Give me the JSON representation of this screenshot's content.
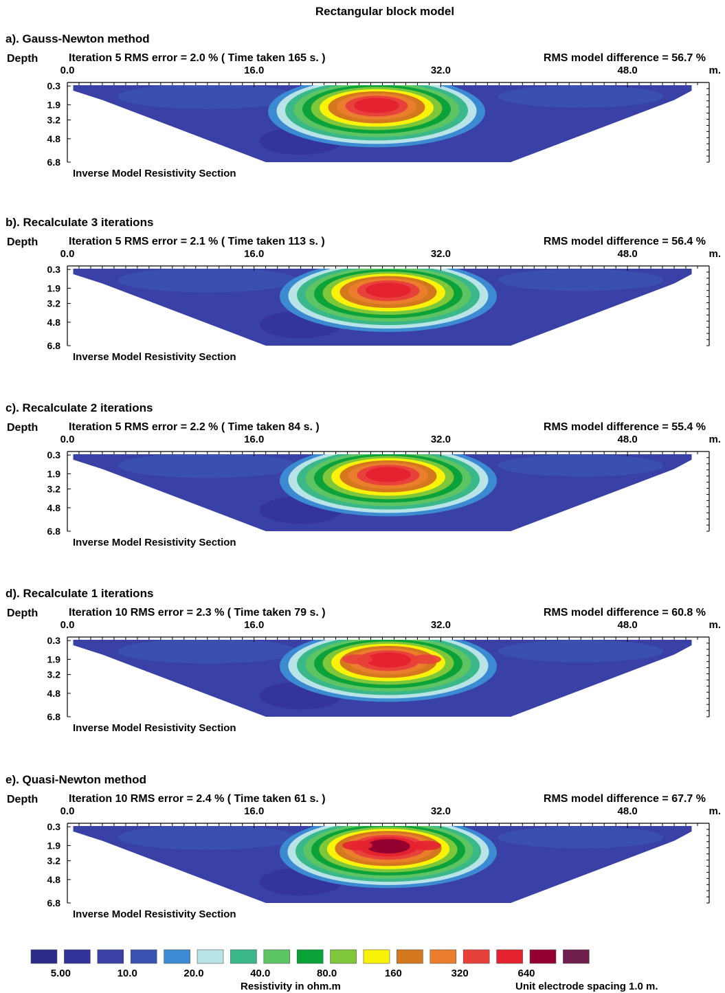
{
  "figure_title": "Rectangular block model",
  "depth_label": "Depth",
  "unit_label": "m.",
  "section_caption": "Inverse Model Resistivity Section",
  "chart_data": [
    {
      "type": "heatmap",
      "panel": "a). Gauss-Newton method",
      "iteration_text": "Iteration 5 RMS error = 2.0 % ( Time taken 165 s. )",
      "iterations": 5,
      "rms_error_percent": 2.0,
      "time_taken_s": 165,
      "rms_model_difference_text": "RMS model difference = 56.7 %",
      "rms_model_difference_percent": 56.7,
      "x_ticks": [
        "0.0",
        "16.0",
        "32.0",
        "48.0"
      ],
      "depth_ticks": [
        "0.3",
        "1.9",
        "3.2",
        "4.8",
        "6.8"
      ],
      "xlim": [
        0,
        55
      ],
      "ylim": [
        0,
        6.8
      ],
      "anomaly": {
        "center_x": 26.5,
        "peak_depth": 1.9,
        "max_level": 13,
        "shape": "single"
      }
    },
    {
      "type": "heatmap",
      "panel": "b). Recalculate 3 iterations",
      "iteration_text": "Iteration 5 RMS error = 2.1 % ( Time taken 113 s. )",
      "iterations": 5,
      "rms_error_percent": 2.1,
      "time_taken_s": 113,
      "rms_model_difference_text": "RMS model difference = 56.4 %",
      "rms_model_difference_percent": 56.4,
      "x_ticks": [
        "0.0",
        "16.0",
        "32.0",
        "48.0"
      ],
      "depth_ticks": [
        "0.3",
        "1.9",
        "3.2",
        "4.8",
        "6.8"
      ],
      "xlim": [
        0,
        55
      ],
      "ylim": [
        0,
        6.8
      ],
      "anomaly": {
        "center_x": 27.5,
        "peak_depth": 2.0,
        "max_level": 13,
        "shape": "single"
      }
    },
    {
      "type": "heatmap",
      "panel": "c). Recalculate 2 iterations",
      "iteration_text": "Iteration 5 RMS error = 2.2 % ( Time taken 84 s. )",
      "iterations": 5,
      "rms_error_percent": 2.2,
      "time_taken_s": 84,
      "rms_model_difference_text": "RMS model difference = 55.4 %",
      "rms_model_difference_percent": 55.4,
      "x_ticks": [
        "0.0",
        "16.0",
        "32.0",
        "48.0"
      ],
      "depth_ticks": [
        "0.3",
        "1.9",
        "3.2",
        "4.8",
        "6.8"
      ],
      "xlim": [
        0,
        55
      ],
      "ylim": [
        0,
        6.8
      ],
      "anomaly": {
        "center_x": 27.5,
        "peak_depth": 1.9,
        "max_level": 13,
        "shape": "single"
      }
    },
    {
      "type": "heatmap",
      "panel": "d). Recalculate 1 iterations",
      "iteration_text": "Iteration 10 RMS error = 2.3 % ( Time taken 79 s. )",
      "iterations": 10,
      "rms_error_percent": 2.3,
      "time_taken_s": 79,
      "rms_model_difference_text": "RMS model difference = 60.8 %",
      "rms_model_difference_percent": 60.8,
      "x_ticks": [
        "0.0",
        "16.0",
        "32.0",
        "48.0"
      ],
      "depth_ticks": [
        "0.3",
        "1.9",
        "3.2",
        "4.8",
        "6.8"
      ],
      "xlim": [
        0,
        55
      ],
      "ylim": [
        0,
        6.8
      ],
      "anomaly": {
        "center_x": 27.5,
        "peak_depth": 1.9,
        "max_level": 13,
        "shape": "double"
      }
    },
    {
      "type": "heatmap",
      "panel": "e). Quasi-Newton method",
      "iteration_text": "Iteration 10 RMS error = 2.4 % ( Time taken 61 s. )",
      "iterations": 10,
      "rms_error_percent": 2.4,
      "time_taken_s": 61,
      "rms_model_difference_text": "RMS model difference = 67.7 %",
      "rms_model_difference_percent": 67.7,
      "x_ticks": [
        "0.0",
        "16.0",
        "32.0",
        "48.0"
      ],
      "depth_ticks": [
        "0.3",
        "1.9",
        "3.2",
        "4.8",
        "6.8"
      ],
      "xlim": [
        0,
        55
      ],
      "ylim": [
        0,
        6.8
      ],
      "anomaly": {
        "center_x": 27.5,
        "peak_depth": 1.9,
        "max_level": 14,
        "shape": "double"
      }
    }
  ],
  "legend": {
    "title": "Resistivity in ohm.m",
    "colors": [
      "#2b2a8a",
      "#33329a",
      "#3940a6",
      "#3a52b2",
      "#3b8ad2",
      "#b8e4e8",
      "#3bb88a",
      "#5cc463",
      "#0ca23a",
      "#7ec63a",
      "#fbf20a",
      "#d4781e",
      "#ea7e2d",
      "#e8403a",
      "#e52230",
      "#94002f",
      "#6e1d4d"
    ],
    "labels": [
      "5.00",
      "10.0",
      "20.0",
      "40.0",
      "80.0",
      "160",
      "320",
      "640"
    ],
    "electrode_note": "Unit electrode spacing 1.0 m."
  }
}
